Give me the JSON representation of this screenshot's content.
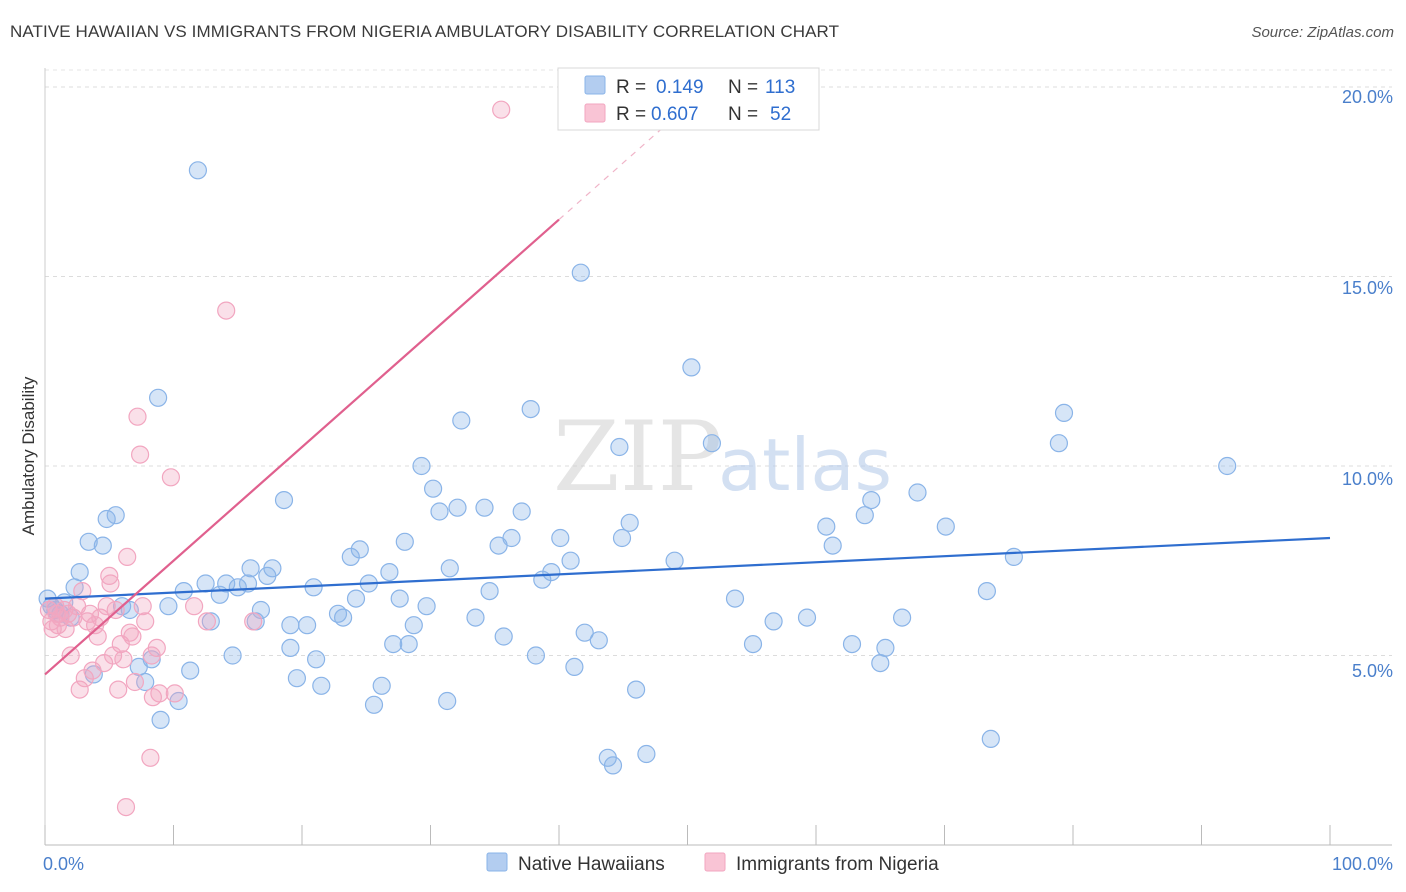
{
  "chart_data": {
    "type": "scatter",
    "title": "NATIVE HAWAIIAN VS IMMIGRANTS FROM NIGERIA AMBULATORY DISABILITY CORRELATION CHART",
    "source": "Source: ZipAtlas.com",
    "ylabel": "Ambulatory Disability",
    "xlabel": "",
    "xlim": [
      0,
      100
    ],
    "ylim": [
      0,
      20.5
    ],
    "y_ticks": [
      "5.0%",
      "10.0%",
      "15.0%",
      "20.0%"
    ],
    "y_tick_values": [
      5,
      10,
      15,
      20
    ],
    "x_ticks": [
      "0.0%",
      "100.0%"
    ],
    "watermark": {
      "zip": "ZIP",
      "atlas": "atlas"
    },
    "legend_top": [
      {
        "r_label": "R =",
        "r": "0.149",
        "n_label": "N =",
        "n": "113"
      },
      {
        "r_label": "R =",
        "r": "0.607",
        "n_label": "N =",
        "n": "52"
      }
    ],
    "series": [
      {
        "name": "Native Hawaiians",
        "color": "#8ab4e8",
        "line_color": "#2f6ecf",
        "trend": {
          "x0": 0,
          "y0": 6.5,
          "x1": 100,
          "y1": 8.1
        },
        "points": [
          [
            0.2,
            6.5
          ],
          [
            0.5,
            6.3
          ],
          [
            0.8,
            6.2
          ],
          [
            1.2,
            6.1
          ],
          [
            1.5,
            6.4
          ],
          [
            2.0,
            6.0
          ],
          [
            2.3,
            6.8
          ],
          [
            2.7,
            7.2
          ],
          [
            3.4,
            8.0
          ],
          [
            4.5,
            7.9
          ],
          [
            4.8,
            8.6
          ],
          [
            5.5,
            8.7
          ],
          [
            3.8,
            4.5
          ],
          [
            6.0,
            6.3
          ],
          [
            6.6,
            6.2
          ],
          [
            7.3,
            4.7
          ],
          [
            7.8,
            4.3
          ],
          [
            8.3,
            4.9
          ],
          [
            8.8,
            11.8
          ],
          [
            9.0,
            3.3
          ],
          [
            9.6,
            6.3
          ],
          [
            10.4,
            3.8
          ],
          [
            10.8,
            6.7
          ],
          [
            11.3,
            4.6
          ],
          [
            11.9,
            17.8
          ],
          [
            12.5,
            6.9
          ],
          [
            12.9,
            5.9
          ],
          [
            13.6,
            6.6
          ],
          [
            14.1,
            6.9
          ],
          [
            14.6,
            5.0
          ],
          [
            15.0,
            6.8
          ],
          [
            15.8,
            6.9
          ],
          [
            16.0,
            7.3
          ],
          [
            16.4,
            5.9
          ],
          [
            16.8,
            6.2
          ],
          [
            17.3,
            7.1
          ],
          [
            17.7,
            7.3
          ],
          [
            18.6,
            9.1
          ],
          [
            19.1,
            5.2
          ],
          [
            19.1,
            5.8
          ],
          [
            19.6,
            4.4
          ],
          [
            20.4,
            5.8
          ],
          [
            20.9,
            6.8
          ],
          [
            21.1,
            4.9
          ],
          [
            21.5,
            4.2
          ],
          [
            22.8,
            6.1
          ],
          [
            23.2,
            6.0
          ],
          [
            23.8,
            7.6
          ],
          [
            24.2,
            6.5
          ],
          [
            24.5,
            7.8
          ],
          [
            25.2,
            6.9
          ],
          [
            25.6,
            3.7
          ],
          [
            26.2,
            4.2
          ],
          [
            26.8,
            7.2
          ],
          [
            27.1,
            5.3
          ],
          [
            27.6,
            6.5
          ],
          [
            28.0,
            8.0
          ],
          [
            28.3,
            5.3
          ],
          [
            28.7,
            5.8
          ],
          [
            29.3,
            10.0
          ],
          [
            29.7,
            6.3
          ],
          [
            30.2,
            9.4
          ],
          [
            30.7,
            8.8
          ],
          [
            31.3,
            3.8
          ],
          [
            31.5,
            7.3
          ],
          [
            32.1,
            8.9
          ],
          [
            32.4,
            11.2
          ],
          [
            33.5,
            6.0
          ],
          [
            34.2,
            8.9
          ],
          [
            34.6,
            6.7
          ],
          [
            35.3,
            7.9
          ],
          [
            35.7,
            5.5
          ],
          [
            36.3,
            8.1
          ],
          [
            37.1,
            8.8
          ],
          [
            37.8,
            11.5
          ],
          [
            38.2,
            5.0
          ],
          [
            38.7,
            7.0
          ],
          [
            39.4,
            7.2
          ],
          [
            40.1,
            8.1
          ],
          [
            40.9,
            7.5
          ],
          [
            41.2,
            4.7
          ],
          [
            41.7,
            15.1
          ],
          [
            42.0,
            5.6
          ],
          [
            43.1,
            5.4
          ],
          [
            43.8,
            2.3
          ],
          [
            44.2,
            2.1
          ],
          [
            44.7,
            10.5
          ],
          [
            44.9,
            8.1
          ],
          [
            45.5,
            8.5
          ],
          [
            46.0,
            4.1
          ],
          [
            46.8,
            2.4
          ],
          [
            49.0,
            7.5
          ],
          [
            50.3,
            12.6
          ],
          [
            51.9,
            10.6
          ],
          [
            53.7,
            6.5
          ],
          [
            55.1,
            5.3
          ],
          [
            56.7,
            5.9
          ],
          [
            59.3,
            6.0
          ],
          [
            60.8,
            8.4
          ],
          [
            61.3,
            7.9
          ],
          [
            62.8,
            5.3
          ],
          [
            63.8,
            8.7
          ],
          [
            64.3,
            9.1
          ],
          [
            65.0,
            4.8
          ],
          [
            65.4,
            5.2
          ],
          [
            66.7,
            6.0
          ],
          [
            67.9,
            9.3
          ],
          [
            70.1,
            8.4
          ],
          [
            73.3,
            6.7
          ],
          [
            73.6,
            2.8
          ],
          [
            75.4,
            7.6
          ],
          [
            78.9,
            10.6
          ],
          [
            79.3,
            11.4
          ],
          [
            92.0,
            10.0
          ]
        ]
      },
      {
        "name": "Immigrants from Nigeria",
        "color": "#f2a6c0",
        "line_color": "#e0608e",
        "trend": {
          "x0": 0,
          "y0": 4.5,
          "x1": 40,
          "y1": 16.5,
          "x1_dash": 50,
          "y1_dash": 19.5
        },
        "points": [
          [
            0.3,
            6.2
          ],
          [
            0.5,
            5.9
          ],
          [
            0.6,
            5.7
          ],
          [
            0.8,
            6.3
          ],
          [
            0.9,
            6.1
          ],
          [
            1.0,
            5.8
          ],
          [
            1.2,
            6.0
          ],
          [
            1.5,
            6.2
          ],
          [
            1.6,
            5.7
          ],
          [
            1.8,
            6.1
          ],
          [
            2.0,
            5.0
          ],
          [
            2.2,
            6.0
          ],
          [
            2.5,
            6.3
          ],
          [
            2.7,
            4.1
          ],
          [
            2.9,
            6.7
          ],
          [
            3.1,
            4.4
          ],
          [
            3.3,
            5.9
          ],
          [
            3.5,
            6.1
          ],
          [
            3.7,
            4.6
          ],
          [
            3.9,
            5.8
          ],
          [
            4.1,
            5.5
          ],
          [
            4.3,
            6.0
          ],
          [
            4.6,
            4.8
          ],
          [
            4.8,
            6.3
          ],
          [
            5.0,
            7.1
          ],
          [
            5.1,
            6.9
          ],
          [
            5.3,
            5.0
          ],
          [
            5.5,
            6.2
          ],
          [
            5.7,
            4.1
          ],
          [
            5.9,
            5.3
          ],
          [
            6.1,
            4.9
          ],
          [
            6.3,
            1.0
          ],
          [
            6.4,
            7.6
          ],
          [
            6.6,
            5.6
          ],
          [
            6.8,
            5.5
          ],
          [
            7.0,
            4.3
          ],
          [
            7.2,
            11.3
          ],
          [
            7.4,
            10.3
          ],
          [
            7.6,
            6.3
          ],
          [
            7.8,
            5.9
          ],
          [
            8.2,
            2.3
          ],
          [
            8.3,
            5.0
          ],
          [
            8.4,
            3.9
          ],
          [
            8.7,
            5.2
          ],
          [
            8.9,
            4.0
          ],
          [
            9.8,
            9.7
          ],
          [
            10.1,
            4.0
          ],
          [
            11.6,
            6.3
          ],
          [
            12.6,
            5.9
          ],
          [
            14.1,
            14.1
          ],
          [
            16.2,
            5.9
          ],
          [
            35.5,
            19.4
          ]
        ]
      }
    ]
  }
}
